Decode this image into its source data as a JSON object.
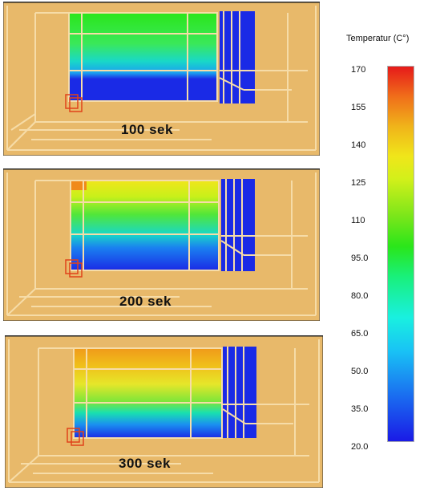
{
  "panels": [
    {
      "label": "100 sek"
    },
    {
      "label": "200 sek"
    },
    {
      "label": "300 sek"
    }
  ],
  "legend": {
    "title": "Temperatur (C°)",
    "ticks": [
      "170",
      "155",
      "140",
      "125",
      "110",
      "95.0",
      "80.0",
      "65.0",
      "50.0",
      "35.0",
      "20.0"
    ],
    "colors": {
      "max": "#e61a1a",
      "high": "#f0b41a",
      "mid": "#2ae61a",
      "low": "#19c2f5",
      "min": "#1a1ae6"
    }
  },
  "room": {
    "wall_color": "#e8b96a",
    "frame_color": "#f6dca8",
    "edge_color": "#333333",
    "marker_color": "#e0421a"
  }
}
